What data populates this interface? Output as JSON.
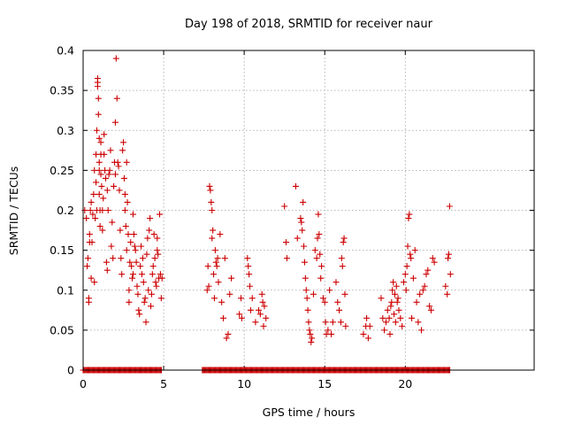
{
  "chart_data": {
    "type": "scatter",
    "title": "Day 198 of 2018, SRMTID for receiver naur",
    "xlabel": "GPS time / hours",
    "ylabel": "SRMTID / TECUs",
    "xlim": [
      0,
      28
    ],
    "ylim": [
      0,
      0.4
    ],
    "xticks": [
      0,
      5,
      10,
      15,
      20
    ],
    "yticks": [
      0,
      0.05,
      0.1,
      0.15,
      0.2,
      0.25,
      0.3,
      0.35,
      0.4
    ],
    "xtick_labels": [
      "0",
      "5",
      "10",
      "15",
      "20"
    ],
    "ytick_labels": [
      "0",
      "0.05",
      "0.1",
      "0.15",
      "0.2",
      "0.25",
      "0.3",
      "0.35",
      "0.4"
    ],
    "grid": true,
    "marker": "+",
    "color": "#cc0000",
    "series": [
      {
        "name": "SRMTID",
        "points": [
          [
            0.1,
            0.2
          ],
          [
            0.2,
            0.19
          ],
          [
            0.25,
            0.13
          ],
          [
            0.3,
            0.14
          ],
          [
            0.35,
            0.09
          ],
          [
            0.35,
            0.085
          ],
          [
            0.4,
            0.17
          ],
          [
            0.4,
            0.16
          ],
          [
            0.45,
            0.2
          ],
          [
            0.5,
            0.115
          ],
          [
            0.5,
            0.21
          ],
          [
            0.55,
            0.16
          ],
          [
            0.6,
            0.195
          ],
          [
            0.65,
            0.22
          ],
          [
            0.7,
            0.25
          ],
          [
            0.7,
            0.11
          ],
          [
            0.75,
            0.19
          ],
          [
            0.8,
            0.27
          ],
          [
            0.8,
            0.235
          ],
          [
            0.85,
            0.2
          ],
          [
            0.85,
            0.3
          ],
          [
            0.9,
            0.36
          ],
          [
            0.9,
            0.365
          ],
          [
            0.9,
            0.355
          ],
          [
            0.95,
            0.34
          ],
          [
            0.95,
            0.32
          ],
          [
            1.0,
            0.29
          ],
          [
            1.0,
            0.26
          ],
          [
            1.0,
            0.25
          ],
          [
            1.0,
            0.22
          ],
          [
            1.05,
            0.18
          ],
          [
            1.05,
            0.2
          ],
          [
            1.1,
            0.285
          ],
          [
            1.1,
            0.27
          ],
          [
            1.1,
            0.245
          ],
          [
            1.15,
            0.23
          ],
          [
            1.2,
            0.2
          ],
          [
            1.2,
            0.175
          ],
          [
            1.25,
            0.215
          ],
          [
            1.3,
            0.27
          ],
          [
            1.3,
            0.295
          ],
          [
            1.35,
            0.25
          ],
          [
            1.4,
            0.24
          ],
          [
            1.45,
            0.135
          ],
          [
            1.5,
            0.125
          ],
          [
            1.5,
            0.225
          ],
          [
            1.55,
            0.2
          ],
          [
            1.6,
            0.245
          ],
          [
            1.65,
            0.25
          ],
          [
            1.7,
            0.275
          ],
          [
            1.75,
            0.155
          ],
          [
            1.8,
            0.185
          ],
          [
            1.85,
            0.14
          ],
          [
            1.9,
            0.23
          ],
          [
            1.95,
            0.26
          ],
          [
            2.0,
            0.31
          ],
          [
            2.0,
            0.245
          ],
          [
            2.05,
            0.39
          ],
          [
            2.1,
            0.34
          ],
          [
            2.15,
            0.26
          ],
          [
            2.2,
            0.255
          ],
          [
            2.25,
            0.225
          ],
          [
            2.3,
            0.175
          ],
          [
            2.35,
            0.14
          ],
          [
            2.4,
            0.12
          ],
          [
            2.45,
            0.275
          ],
          [
            2.5,
            0.285
          ],
          [
            2.55,
            0.24
          ],
          [
            2.6,
            0.22
          ],
          [
            2.6,
            0.2
          ],
          [
            2.65,
            0.18
          ],
          [
            2.7,
            0.26
          ],
          [
            2.7,
            0.15
          ],
          [
            2.75,
            0.21
          ],
          [
            2.8,
            0.17
          ],
          [
            2.85,
            0.1
          ],
          [
            2.85,
            0.085
          ],
          [
            2.9,
            0.135
          ],
          [
            2.95,
            0.16
          ],
          [
            3.0,
            0.13
          ],
          [
            3.05,
            0.115
          ],
          [
            3.1,
            0.12
          ],
          [
            3.1,
            0.195
          ],
          [
            3.15,
            0.17
          ],
          [
            3.2,
            0.155
          ],
          [
            3.25,
            0.15
          ],
          [
            3.3,
            0.135
          ],
          [
            3.35,
            0.105
          ],
          [
            3.4,
            0.095
          ],
          [
            3.45,
            0.075
          ],
          [
            3.5,
            0.07
          ],
          [
            3.55,
            0.13
          ],
          [
            3.6,
            0.155
          ],
          [
            3.65,
            0.12
          ],
          [
            3.7,
            0.14
          ],
          [
            3.75,
            0.11
          ],
          [
            3.8,
            0.085
          ],
          [
            3.85,
            0.09
          ],
          [
            3.9,
            0.06
          ],
          [
            3.95,
            0.145
          ],
          [
            4.0,
            0.165
          ],
          [
            4.05,
            0.1
          ],
          [
            4.1,
            0.175
          ],
          [
            4.15,
            0.19
          ],
          [
            4.2,
            0.08
          ],
          [
            4.25,
            0.095
          ],
          [
            4.3,
            0.12
          ],
          [
            4.35,
            0.13
          ],
          [
            4.4,
            0.17
          ],
          [
            4.45,
            0.14
          ],
          [
            4.5,
            0.11
          ],
          [
            4.55,
            0.105
          ],
          [
            4.6,
            0.15
          ],
          [
            4.6,
            0.165
          ],
          [
            4.65,
            0.145
          ],
          [
            4.7,
            0.115
          ],
          [
            4.75,
            0.195
          ],
          [
            4.8,
            0.12
          ],
          [
            4.85,
            0.09
          ],
          [
            4.9,
            0.115
          ],
          [
            7.7,
            0.1
          ],
          [
            7.75,
            0.13
          ],
          [
            7.8,
            0.105
          ],
          [
            7.85,
            0.23
          ],
          [
            7.9,
            0.225
          ],
          [
            7.95,
            0.21
          ],
          [
            8.0,
            0.2
          ],
          [
            8.0,
            0.165
          ],
          [
            8.05,
            0.175
          ],
          [
            8.1,
            0.12
          ],
          [
            8.15,
            0.09
          ],
          [
            8.2,
            0.15
          ],
          [
            8.25,
            0.135
          ],
          [
            8.3,
            0.13
          ],
          [
            8.35,
            0.14
          ],
          [
            8.4,
            0.11
          ],
          [
            8.5,
            0.17
          ],
          [
            8.6,
            0.085
          ],
          [
            8.7,
            0.065
          ],
          [
            8.8,
            0.14
          ],
          [
            8.9,
            0.04
          ],
          [
            9.0,
            0.045
          ],
          [
            9.1,
            0.095
          ],
          [
            9.2,
            0.115
          ],
          [
            9.7,
            0.07
          ],
          [
            9.8,
            0.09
          ],
          [
            9.85,
            0.065
          ],
          [
            10.2,
            0.14
          ],
          [
            10.25,
            0.13
          ],
          [
            10.3,
            0.12
          ],
          [
            10.35,
            0.105
          ],
          [
            10.4,
            0.075
          ],
          [
            10.5,
            0.09
          ],
          [
            10.7,
            0.06
          ],
          [
            10.9,
            0.075
          ],
          [
            11.0,
            0.07
          ],
          [
            11.1,
            0.095
          ],
          [
            11.15,
            0.085
          ],
          [
            11.2,
            0.055
          ],
          [
            11.25,
            0.08
          ],
          [
            11.35,
            0.065
          ],
          [
            12.5,
            0.205
          ],
          [
            12.6,
            0.16
          ],
          [
            12.65,
            0.14
          ],
          [
            13.2,
            0.23
          ],
          [
            13.3,
            0.165
          ],
          [
            13.5,
            0.19
          ],
          [
            13.55,
            0.185
          ],
          [
            13.6,
            0.175
          ],
          [
            13.65,
            0.21
          ],
          [
            13.7,
            0.155
          ],
          [
            13.75,
            0.135
          ],
          [
            13.8,
            0.115
          ],
          [
            13.85,
            0.1
          ],
          [
            13.9,
            0.09
          ],
          [
            13.95,
            0.075
          ],
          [
            14.0,
            0.06
          ],
          [
            14.05,
            0.05
          ],
          [
            14.1,
            0.045
          ],
          [
            14.15,
            0.035
          ],
          [
            14.2,
            0.04
          ],
          [
            14.3,
            0.095
          ],
          [
            14.4,
            0.15
          ],
          [
            14.5,
            0.14
          ],
          [
            14.55,
            0.165
          ],
          [
            14.6,
            0.195
          ],
          [
            14.65,
            0.17
          ],
          [
            14.7,
            0.145
          ],
          [
            14.75,
            0.115
          ],
          [
            14.8,
            0.13
          ],
          [
            14.9,
            0.09
          ],
          [
            15.0,
            0.085
          ],
          [
            15.05,
            0.06
          ],
          [
            15.1,
            0.045
          ],
          [
            15.2,
            0.05
          ],
          [
            15.3,
            0.1
          ],
          [
            15.4,
            0.045
          ],
          [
            15.5,
            0.06
          ],
          [
            15.7,
            0.11
          ],
          [
            15.8,
            0.085
          ],
          [
            15.9,
            0.075
          ],
          [
            16.0,
            0.06
          ],
          [
            16.05,
            0.14
          ],
          [
            16.1,
            0.13
          ],
          [
            16.15,
            0.16
          ],
          [
            16.2,
            0.165
          ],
          [
            16.25,
            0.095
          ],
          [
            16.3,
            0.055
          ],
          [
            17.4,
            0.045
          ],
          [
            17.55,
            0.055
          ],
          [
            17.6,
            0.065
          ],
          [
            17.7,
            0.04
          ],
          [
            17.8,
            0.055
          ],
          [
            18.5,
            0.09
          ],
          [
            18.6,
            0.065
          ],
          [
            18.7,
            0.05
          ],
          [
            18.8,
            0.06
          ],
          [
            18.9,
            0.075
          ],
          [
            19.0,
            0.065
          ],
          [
            19.05,
            0.045
          ],
          [
            19.1,
            0.08
          ],
          [
            19.15,
            0.085
          ],
          [
            19.2,
            0.1
          ],
          [
            19.25,
            0.11
          ],
          [
            19.3,
            0.07
          ],
          [
            19.35,
            0.095
          ],
          [
            19.4,
            0.06
          ],
          [
            19.45,
            0.105
          ],
          [
            19.5,
            0.085
          ],
          [
            19.55,
            0.09
          ],
          [
            19.6,
            0.075
          ],
          [
            19.7,
            0.065
          ],
          [
            19.8,
            0.055
          ],
          [
            19.9,
            0.11
          ],
          [
            20.0,
            0.12
          ],
          [
            20.05,
            0.1
          ],
          [
            20.1,
            0.13
          ],
          [
            20.15,
            0.155
          ],
          [
            20.2,
            0.19
          ],
          [
            20.25,
            0.195
          ],
          [
            20.3,
            0.145
          ],
          [
            20.35,
            0.14
          ],
          [
            20.4,
            0.065
          ],
          [
            20.5,
            0.115
          ],
          [
            20.6,
            0.15
          ],
          [
            20.7,
            0.085
          ],
          [
            20.8,
            0.06
          ],
          [
            20.9,
            0.095
          ],
          [
            21.0,
            0.05
          ],
          [
            21.1,
            0.1
          ],
          [
            21.2,
            0.105
          ],
          [
            21.3,
            0.12
          ],
          [
            21.4,
            0.125
          ],
          [
            21.5,
            0.08
          ],
          [
            21.6,
            0.075
          ],
          [
            21.7,
            0.14
          ],
          [
            21.8,
            0.135
          ],
          [
            22.5,
            0.105
          ],
          [
            22.6,
            0.095
          ],
          [
            22.65,
            0.14
          ],
          [
            22.7,
            0.145
          ],
          [
            22.75,
            0.205
          ],
          [
            22.8,
            0.12
          ]
        ]
      }
    ],
    "zero_bands": [
      [
        0.0,
        4.9
      ],
      [
        7.4,
        22.8
      ]
    ]
  }
}
